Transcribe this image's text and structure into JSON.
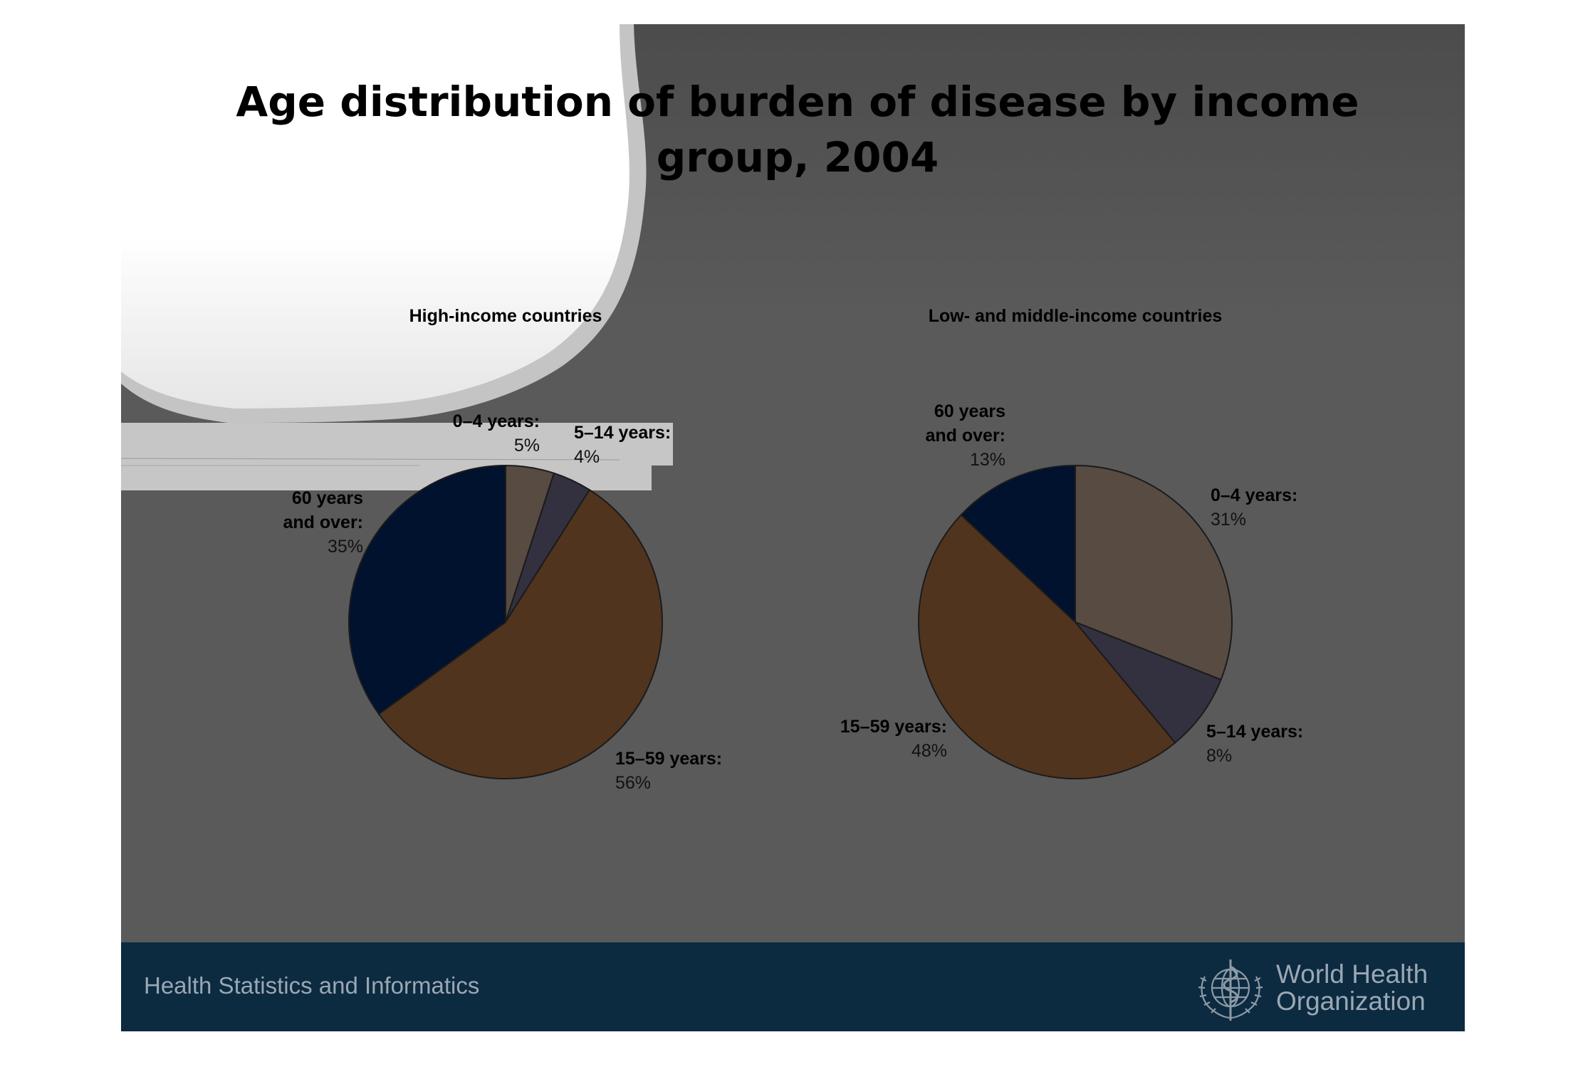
{
  "title": "Age distribution of burden of disease by income group, 2004",
  "footer": {
    "text": "Health Statistics and Informatics",
    "org_line1": "World Health",
    "org_line2": "Organization"
  },
  "colors": {
    "0-4": "#574b42",
    "5-14": "#33303f",
    "15-59": "#51341e",
    "60+": "#01122e",
    "footer": "#0c2a40",
    "slide_bg": "#5a5a5a"
  },
  "chart_data": [
    {
      "type": "pie",
      "title": "High-income countries",
      "slices": [
        {
          "key": "0-4",
          "label_lines": [
            "0–4 years:"
          ],
          "value_text": "5%",
          "value": 5
        },
        {
          "key": "5-14",
          "label_lines": [
            "5–14 years:"
          ],
          "value_text": "4%",
          "value": 4
        },
        {
          "key": "15-59",
          "label_lines": [
            "15–59 years:"
          ],
          "value_text": "56%",
          "value": 56
        },
        {
          "key": "60+",
          "label_lines": [
            "60 years",
            "and over:"
          ],
          "value_text": "35%",
          "value": 35
        }
      ]
    },
    {
      "type": "pie",
      "title": "Low- and middle-income countries",
      "slices": [
        {
          "key": "0-4",
          "label_lines": [
            "0–4 years:"
          ],
          "value_text": "31%",
          "value": 31
        },
        {
          "key": "5-14",
          "label_lines": [
            "5–14 years:"
          ],
          "value_text": "8%",
          "value": 8
        },
        {
          "key": "15-59",
          "label_lines": [
            "15–59 years:"
          ],
          "value_text": "48%",
          "value": 48
        },
        {
          "key": "60+",
          "label_lines": [
            "60 years",
            "and over:"
          ],
          "value_text": "13%",
          "value": 13
        }
      ]
    }
  ]
}
